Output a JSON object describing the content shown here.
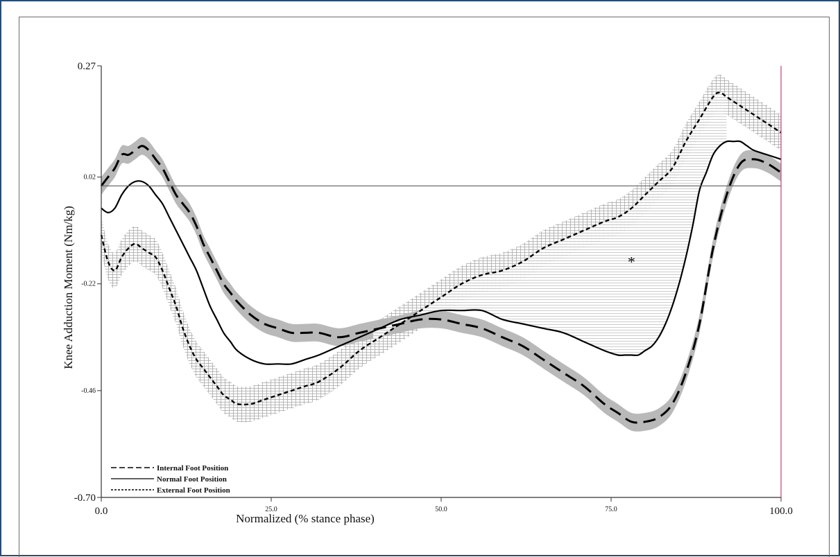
{
  "chart_data": {
    "type": "line",
    "title": "",
    "xlabel": "Normalized (% stance phase)",
    "ylabel": "Knee Adduction Moment (Nm/kg)",
    "xlim": [
      0,
      100
    ],
    "ylim": [
      -0.7,
      0.27
    ],
    "x_ticks": [
      {
        "value": 0,
        "label": "0.0",
        "size": "large"
      },
      {
        "value": 25,
        "label": "25.0",
        "size": "small"
      },
      {
        "value": 50,
        "label": "50.0",
        "size": "small"
      },
      {
        "value": 75,
        "label": "75.0",
        "size": "small"
      },
      {
        "value": 100,
        "label": "100.0",
        "size": "large"
      }
    ],
    "y_ticks": [
      {
        "value": 0.27,
        "label": "0.27",
        "size": "large"
      },
      {
        "value": 0.02,
        "label": "0.02",
        "size": "small"
      },
      {
        "value": -0.22,
        "label": "-0.22",
        "size": "small"
      },
      {
        "value": -0.46,
        "label": "-0.46",
        "size": "small"
      },
      {
        "value": -0.7,
        "label": "-0.70",
        "size": "large"
      }
    ],
    "reference_line_y": 0.0,
    "annotation": {
      "text": "*",
      "x": 78,
      "y": -0.17
    },
    "legend_position": "bottom-left",
    "series": [
      {
        "name": "Internal Foot Position",
        "style": "long-dash",
        "band": "solid-gray",
        "band_halfwidth": 0.02,
        "x": [
          0,
          1,
          2,
          3,
          4,
          5,
          6,
          7,
          8,
          9,
          10,
          11,
          12,
          13,
          14,
          15,
          16,
          17,
          18,
          19,
          20,
          22,
          24,
          26,
          28,
          30,
          32,
          35,
          38,
          41,
          44,
          47,
          50,
          53,
          56,
          59,
          62,
          65,
          68,
          71,
          74,
          76,
          78,
          80,
          82,
          84,
          86,
          88,
          90,
          92,
          94,
          96,
          98,
          100
        ],
        "y": [
          0.0,
          0.02,
          0.04,
          0.07,
          0.07,
          0.08,
          0.09,
          0.08,
          0.06,
          0.04,
          0.01,
          -0.02,
          -0.04,
          -0.06,
          -0.09,
          -0.13,
          -0.16,
          -0.19,
          -0.22,
          -0.24,
          -0.26,
          -0.29,
          -0.31,
          -0.32,
          -0.33,
          -0.33,
          -0.33,
          -0.34,
          -0.33,
          -0.32,
          -0.31,
          -0.3,
          -0.3,
          -0.31,
          -0.32,
          -0.34,
          -0.36,
          -0.39,
          -0.42,
          -0.45,
          -0.49,
          -0.51,
          -0.53,
          -0.53,
          -0.52,
          -0.49,
          -0.42,
          -0.31,
          -0.14,
          -0.02,
          0.05,
          0.06,
          0.05,
          0.03
        ]
      },
      {
        "name": "Normal Foot Position",
        "style": "solid",
        "x": [
          0,
          1,
          2,
          3,
          4,
          5,
          6,
          7,
          8,
          9,
          10,
          11,
          12,
          13,
          14,
          15,
          16,
          17,
          18,
          19,
          20,
          22,
          24,
          26,
          28,
          30,
          32,
          35,
          38,
          41,
          44,
          47,
          50,
          53,
          56,
          59,
          62,
          65,
          68,
          71,
          74,
          76,
          77,
          78,
          79,
          80,
          81,
          82,
          83,
          84,
          85,
          86,
          87,
          88,
          89,
          90,
          91,
          92,
          93,
          94,
          95,
          96,
          98,
          100
        ],
        "y": [
          -0.05,
          -0.06,
          -0.05,
          -0.02,
          0.0,
          0.01,
          0.01,
          0.0,
          -0.02,
          -0.04,
          -0.07,
          -0.1,
          -0.13,
          -0.16,
          -0.19,
          -0.23,
          -0.27,
          -0.3,
          -0.33,
          -0.35,
          -0.37,
          -0.39,
          -0.4,
          -0.4,
          -0.4,
          -0.39,
          -0.38,
          -0.36,
          -0.34,
          -0.32,
          -0.3,
          -0.29,
          -0.28,
          -0.28,
          -0.28,
          -0.3,
          -0.31,
          -0.32,
          -0.33,
          -0.35,
          -0.37,
          -0.38,
          -0.38,
          -0.38,
          -0.38,
          -0.37,
          -0.36,
          -0.34,
          -0.31,
          -0.27,
          -0.22,
          -0.16,
          -0.09,
          -0.01,
          0.03,
          0.07,
          0.09,
          0.1,
          0.1,
          0.1,
          0.09,
          0.08,
          0.07,
          0.06
        ]
      },
      {
        "name": "External Foot Position",
        "style": "short-dash",
        "band": "hatched",
        "band_halfwidth": 0.04,
        "x": [
          0,
          1,
          2,
          3,
          4,
          5,
          6,
          7,
          8,
          9,
          10,
          11,
          12,
          13,
          14,
          15,
          16,
          17,
          18,
          19,
          20,
          22,
          24,
          26,
          28,
          30,
          32,
          35,
          38,
          41,
          44,
          47,
          50,
          53,
          56,
          59,
          62,
          65,
          68,
          71,
          74,
          76,
          78,
          80,
          82,
          84,
          86,
          88,
          90,
          91,
          92,
          94,
          96,
          98,
          100
        ],
        "y": [
          -0.11,
          -0.17,
          -0.19,
          -0.16,
          -0.14,
          -0.13,
          -0.14,
          -0.15,
          -0.16,
          -0.19,
          -0.23,
          -0.27,
          -0.32,
          -0.36,
          -0.39,
          -0.41,
          -0.43,
          -0.45,
          -0.47,
          -0.48,
          -0.49,
          -0.49,
          -0.48,
          -0.47,
          -0.46,
          -0.45,
          -0.44,
          -0.41,
          -0.37,
          -0.34,
          -0.31,
          -0.28,
          -0.25,
          -0.22,
          -0.2,
          -0.19,
          -0.17,
          -0.14,
          -0.12,
          -0.1,
          -0.08,
          -0.07,
          -0.05,
          -0.02,
          0.01,
          0.04,
          0.1,
          0.15,
          0.2,
          0.21,
          0.2,
          0.18,
          0.16,
          0.14,
          0.12
        ]
      }
    ]
  }
}
